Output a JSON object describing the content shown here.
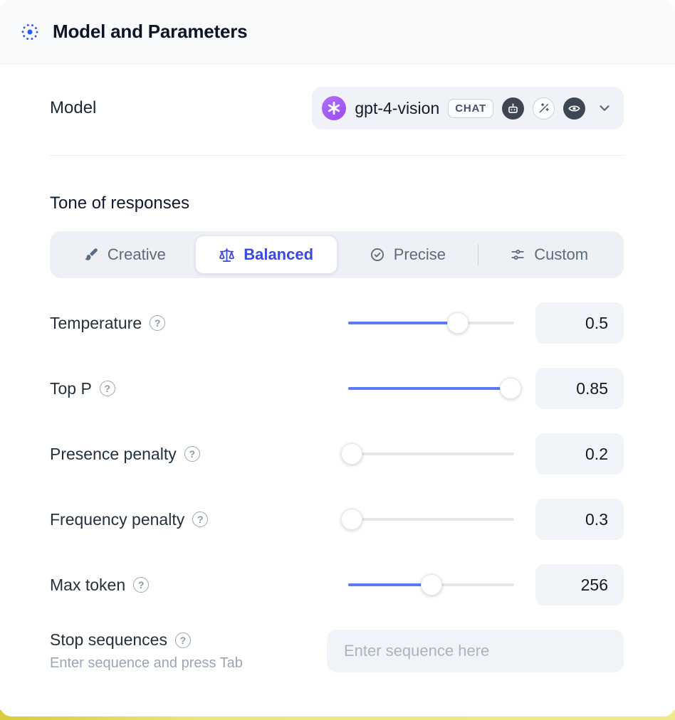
{
  "header": {
    "title": "Model and Parameters"
  },
  "model": {
    "label": "Model",
    "selected": "gpt-4-vision",
    "type_badge": "CHAT",
    "capability_icons": [
      "robot-icon",
      "magic-wand-icon",
      "vision-icon"
    ]
  },
  "tone": {
    "heading": "Tone of responses",
    "options": [
      {
        "label": "Creative",
        "icon": "brush-icon",
        "selected": false
      },
      {
        "label": "Balanced",
        "icon": "scales-icon",
        "selected": true
      },
      {
        "label": "Precise",
        "icon": "target-check-icon",
        "selected": false
      },
      {
        "label": "Custom",
        "icon": "sliders-icon",
        "selected": false
      }
    ]
  },
  "parameters": [
    {
      "label": "Temperature",
      "value": "0.5",
      "slider_percent": 66
    },
    {
      "label": "Top P",
      "value": "0.85",
      "slider_percent": 98
    },
    {
      "label": "Presence penalty",
      "value": "0.2",
      "slider_percent": 2
    },
    {
      "label": "Frequency penalty",
      "value": "0.3",
      "slider_percent": 2
    },
    {
      "label": "Max token",
      "value": "256",
      "slider_percent": 50
    }
  ],
  "stop_sequences": {
    "label": "Stop sequences",
    "hint": "Enter sequence and press Tab",
    "placeholder": "Enter sequence here"
  },
  "help_glyph": "?",
  "colors": {
    "accent_text_blue": "#3c49dd",
    "slider_blue": "#5b79fb",
    "header_icon_blue": "#2e5bf6",
    "openai_purple": "#a35ef5",
    "control_bg": "#edf0f5",
    "value_bg": "#f1f4f8",
    "page_edge_yellow": "#e8e06c"
  }
}
